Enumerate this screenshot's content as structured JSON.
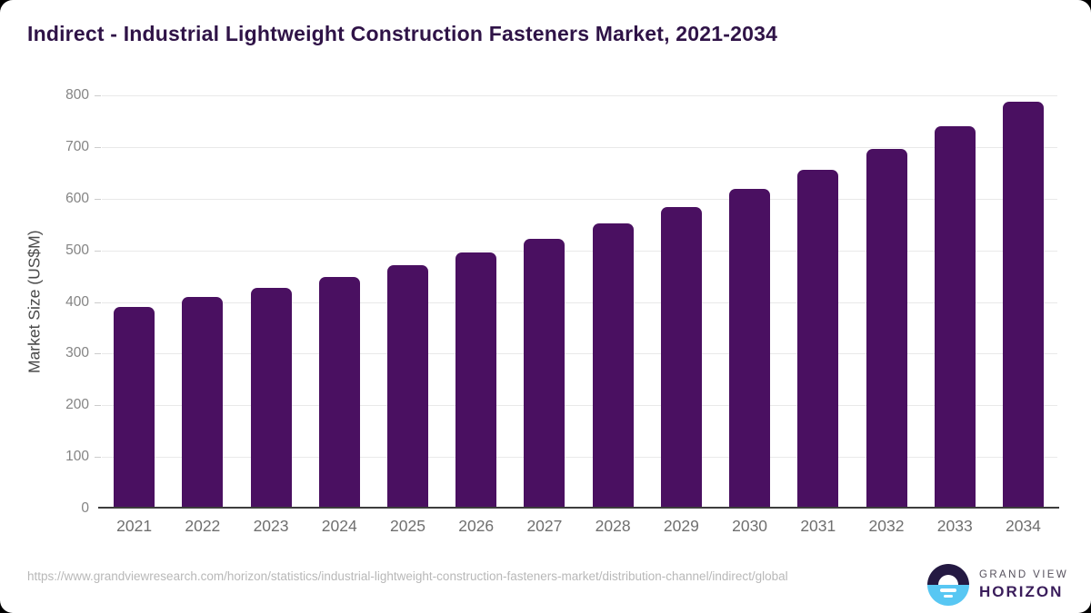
{
  "title": "Indirect - Industrial Lightweight Construction Fasteners Market, 2021-2034",
  "chart_data": {
    "type": "bar",
    "title": "Indirect - Industrial Lightweight Construction Fasteners Market, 2021-2034",
    "categories": [
      "2021",
      "2022",
      "2023",
      "2024",
      "2025",
      "2026",
      "2027",
      "2028",
      "2029",
      "2030",
      "2031",
      "2032",
      "2033",
      "2034"
    ],
    "values": [
      391,
      409,
      427,
      448,
      471,
      495,
      523,
      552,
      584,
      619,
      656,
      696,
      741,
      788
    ],
    "xlabel": "",
    "ylabel": "Market Size (US$M)",
    "ylim": [
      0,
      800
    ],
    "ytick_interval": 100,
    "ytick_labels": [
      "0",
      "100",
      "200",
      "300",
      "400",
      "500",
      "600",
      "700",
      "800"
    ],
    "grid": true,
    "legend": false,
    "bar_color": "#4a1061"
  },
  "colors": {
    "title_text": "#2f1347",
    "bar": "#4a1061",
    "gridline": "#e9e9e9",
    "axis_line": "#3d3d3d",
    "x_tick_text": "#6f6f6f",
    "y_tick_text": "#848484",
    "url_text": "#b8b8b8",
    "logo_dark": "#241942",
    "logo_blue": "#58c7f3",
    "logo_horizon_text": "#3a1d5b",
    "logo_grandview_text": "#55505c"
  },
  "footer": {
    "source_url": "https://www.grandviewresearch.com/horizon/statistics/industrial-lightweight-construction-fasteners-market/distribution-channel/indirect/global",
    "logo": {
      "top_text": "GRAND VIEW",
      "bottom_text": "HORIZON"
    }
  }
}
